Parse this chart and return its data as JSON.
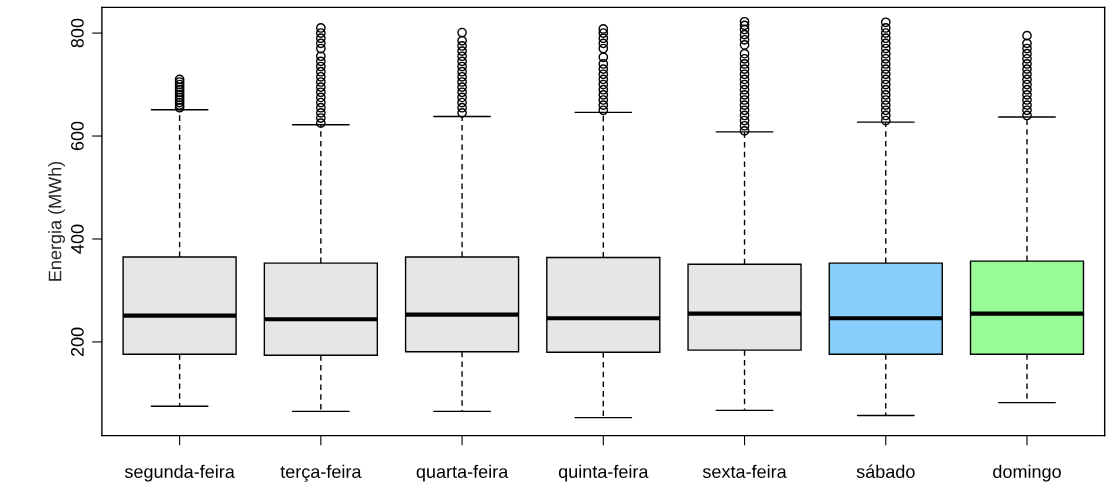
{
  "chart_data": {
    "type": "box",
    "ylabel": "Energia (MWh)",
    "categories": [
      "segunda-feira",
      "terça-feira",
      "quarta-feira",
      "quinta-feira",
      "sexta-feira",
      "sábado",
      "domingo"
    ],
    "colors": [
      "#e6e6e6",
      "#e6e6e6",
      "#e6e6e6",
      "#e6e6e6",
      "#e6e6e6",
      "#87cefa",
      "#98fb98"
    ],
    "boxes": [
      {
        "low": 75,
        "q1": 176,
        "median": 251,
        "q3": 365,
        "high": 651,
        "outliers": [
          655,
          660,
          665,
          670,
          675,
          680,
          685,
          690,
          695,
          700,
          705,
          710
        ]
      },
      {
        "low": 65,
        "q1": 174,
        "median": 244,
        "q3": 353,
        "high": 622,
        "outliers": [
          625,
          635,
          645,
          655,
          665,
          675,
          685,
          695,
          705,
          715,
          725,
          735,
          745,
          755,
          770,
          780,
          790,
          800,
          810
        ]
      },
      {
        "low": 65,
        "q1": 181,
        "median": 253,
        "q3": 365,
        "high": 638,
        "outliers": [
          645,
          655,
          665,
          675,
          685,
          695,
          705,
          715,
          725,
          735,
          745,
          755,
          765,
          775,
          785,
          801
        ]
      },
      {
        "low": 53,
        "q1": 180,
        "median": 246,
        "q3": 364,
        "high": 646,
        "outliers": [
          650,
          660,
          670,
          680,
          690,
          700,
          710,
          720,
          730,
          740,
          753,
          770,
          780,
          790,
          800,
          808
        ]
      },
      {
        "low": 67,
        "q1": 184,
        "median": 255,
        "q3": 351,
        "high": 608,
        "outliers": [
          610,
          620,
          630,
          640,
          650,
          660,
          670,
          680,
          690,
          700,
          710,
          720,
          730,
          740,
          750,
          760,
          777,
          787,
          797,
          807,
          815,
          822
        ]
      },
      {
        "low": 57,
        "q1": 176,
        "median": 246,
        "q3": 353,
        "high": 627,
        "outliers": [
          630,
          640,
          650,
          660,
          670,
          680,
          690,
          700,
          710,
          720,
          730,
          740,
          750,
          760,
          770,
          780,
          790,
          800,
          810,
          821
        ]
      },
      {
        "low": 82,
        "q1": 176,
        "median": 255,
        "q3": 357,
        "high": 637,
        "outliers": [
          640,
          650,
          660,
          670,
          680,
          690,
          700,
          710,
          720,
          730,
          740,
          750,
          760,
          770,
          780,
          795
        ]
      }
    ],
    "ylim": [
      18,
      850
    ],
    "yticks": [
      200,
      400,
      600,
      800
    ],
    "grid": false
  }
}
